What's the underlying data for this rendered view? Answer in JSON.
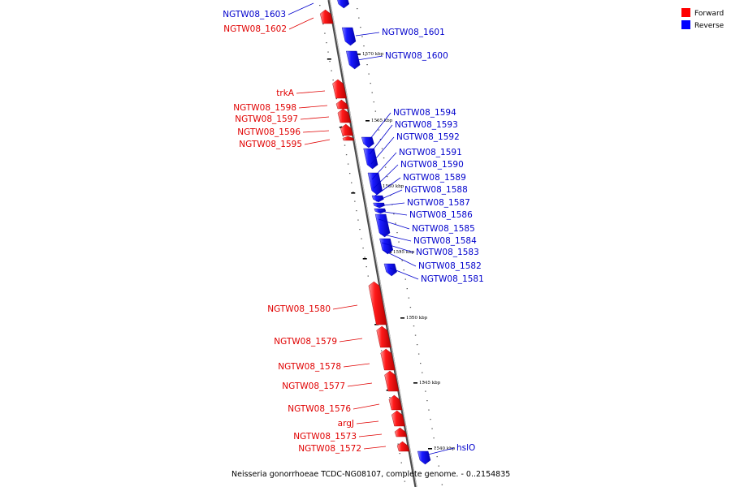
{
  "caption": "Neisseria gonorrhoeae TCDC-NG08107, complete genome. - 0..2154835",
  "legend": {
    "forward": {
      "label": "Forward",
      "color": "#ff0000"
    },
    "reverse": {
      "label": "Reverse",
      "color": "#0000ff"
    }
  },
  "scale_labels": [
    "1570 kbp",
    "1565 kbp",
    "1560 kbp",
    "1555 kbp",
    "1550 kbp",
    "1545 kbp",
    "1540 kbp"
  ],
  "forward_genes": [
    "NGTW08_1602",
    "trkA",
    "NGTW08_1598",
    "NGTW08_1597",
    "NGTW08_1596",
    "NGTW08_1595",
    "NGTW08_1580",
    "NGTW08_1579",
    "NGTW08_1578",
    "NGTW08_1577",
    "NGTW08_1576",
    "argJ",
    "NGTW08_1573",
    "NGTW08_1572"
  ],
  "reverse_genes": [
    "NGTW08_1603",
    "NGTW08_1601",
    "NGTW08_1600",
    "NGTW08_1594",
    "NGTW08_1593",
    "NGTW08_1592",
    "NGTW08_1591",
    "NGTW08_1590",
    "NGTW08_1589",
    "NGTW08_1588",
    "NGTW08_1587",
    "NGTW08_1586",
    "NGTW08_1585",
    "NGTW08_1584",
    "NGTW08_1583",
    "NGTW08_1582",
    "NGTW08_1581",
    "hslO"
  ]
}
